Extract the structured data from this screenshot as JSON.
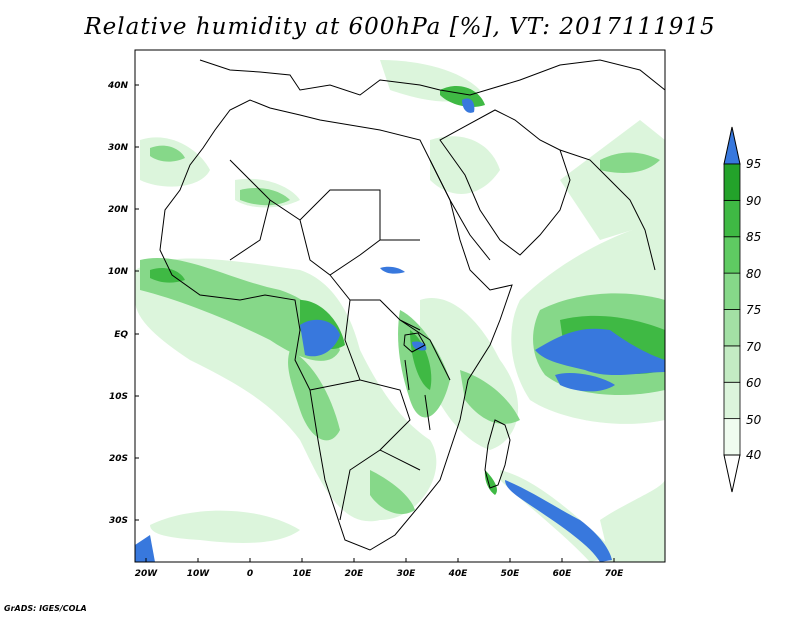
{
  "title": "Relative humidity at 600hPa [%], VT: 2017111915",
  "credit": "GrADS: IGES/COLA",
  "lat_labels": [
    "40N",
    "30N",
    "20N",
    "10N",
    "EQ",
    "10S",
    "20S",
    "30S"
  ],
  "lon_labels": [
    "20W",
    "10W",
    "0",
    "10E",
    "20E",
    "30E",
    "40E",
    "50E",
    "60E",
    "70E"
  ],
  "colorbar": {
    "levels": [
      "40",
      "50",
      "60",
      "70",
      "75",
      "80",
      "85",
      "90",
      "95"
    ],
    "colors": [
      "#f0fcf0",
      "#dcf5dc",
      "#c3ebc3",
      "#a3e0a5",
      "#86d889",
      "#5fcb62",
      "#3fb944",
      "#23a22a",
      "#3878dd"
    ]
  },
  "colors": {
    "coast": "#000000",
    "rh_light": "#dcf5dc",
    "rh_mid": "#86d889",
    "rh_high": "#3fb944",
    "rh_max": "#3878dd"
  }
}
